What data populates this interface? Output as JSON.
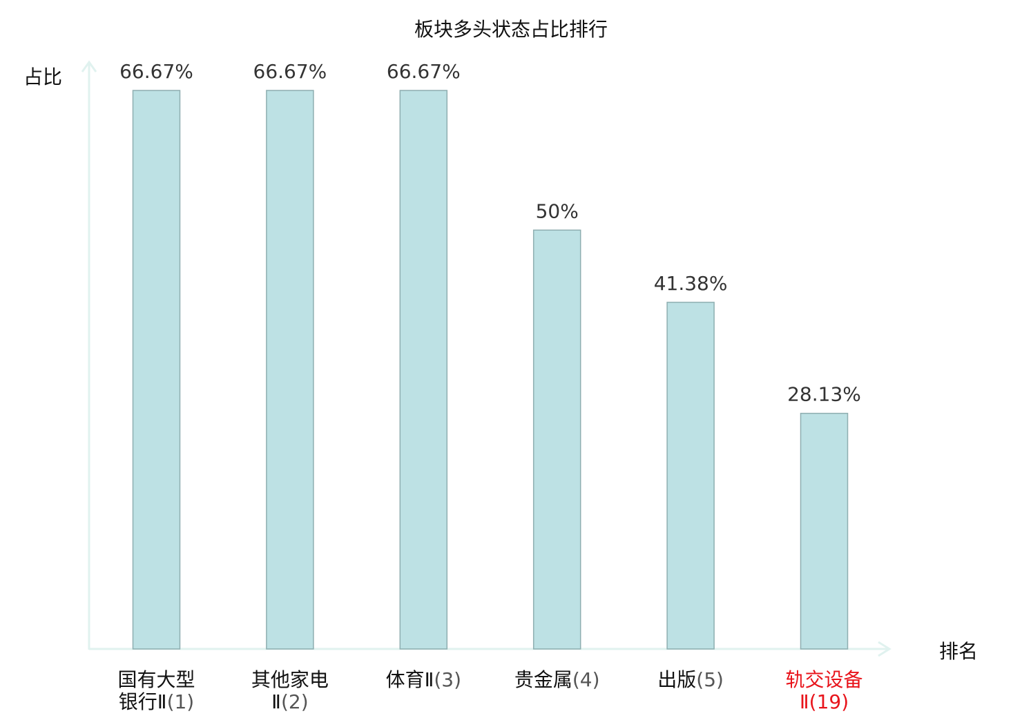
{
  "chart_data": {
    "type": "bar",
    "title": "板块多头状态占比排行",
    "ylabel": "占比",
    "xlabel": "排名",
    "ylim": [
      0,
      70
    ],
    "grid": false,
    "legend": "none",
    "categories": [
      {
        "lines": [
          "国有大型",
          "银行Ⅱ(1)"
        ],
        "name_part": [
          "国有大型",
          "银行Ⅱ"
        ],
        "rank": "(1)"
      },
      {
        "lines": [
          "其他家电",
          "Ⅱ(2)"
        ],
        "name_part": [
          "其他家电",
          "Ⅱ"
        ],
        "rank": "(2)"
      },
      {
        "lines": [
          "体育Ⅱ(3)"
        ],
        "name_part": [
          "体育Ⅱ"
        ],
        "rank": "(3)"
      },
      {
        "lines": [
          "贵金属(4)"
        ],
        "name_part": [
          "贵金属"
        ],
        "rank": "(4)"
      },
      {
        "lines": [
          "出版(5)"
        ],
        "name_part": [
          "出版"
        ],
        "rank": "(5)"
      },
      {
        "lines": [
          "轨交设备",
          "Ⅱ(19)"
        ],
        "name_part": [
          "轨交设备",
          "Ⅱ"
        ],
        "rank": "(19)",
        "highlight": true
      }
    ],
    "values": [
      66.67,
      66.67,
      66.67,
      50,
      41.38,
      28.13
    ],
    "value_labels": [
      "66.67%",
      "66.67%",
      "66.67%",
      "50%",
      "41.38%",
      "28.13%"
    ],
    "colors": {
      "bar_fill": "#bde1e4",
      "bar_stroke": "#8eaeb0",
      "axis": "#e0f2ef",
      "text": "#111111",
      "value_text": "#333333",
      "rank_text": "#555555",
      "highlight": "#e8141b"
    }
  }
}
